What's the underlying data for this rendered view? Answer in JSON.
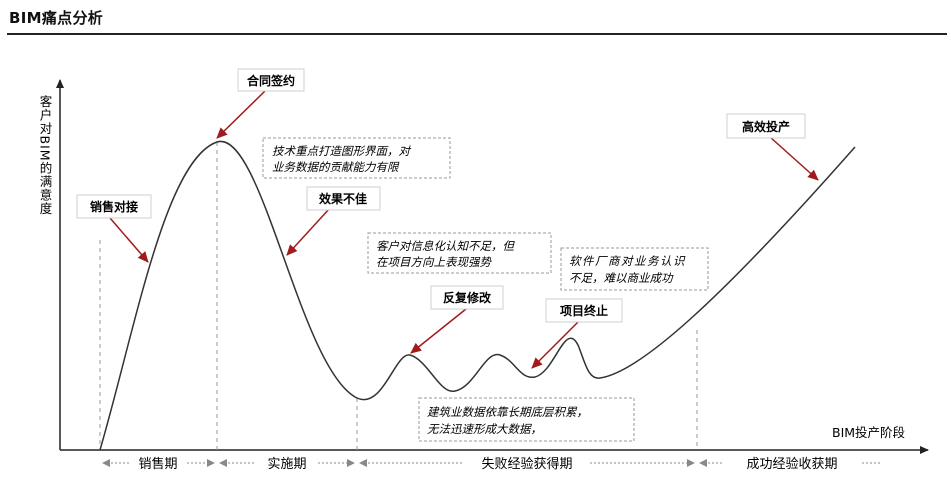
{
  "title": "BIM痛点分析",
  "axes": {
    "y_label": "客户对BIM的满意度",
    "x_label": "BIM投产阶段"
  },
  "callouts": {
    "contract": "合同签约",
    "sales_connect": "销售对接",
    "poor_effect": "效果不佳",
    "revision": "反复修改",
    "termination": "项目终止",
    "high_efficiency": "高效投产"
  },
  "notes": {
    "tech_focus": [
      "技术重点打造图形界面，对",
      "业务数据的贡献能力有限"
    ],
    "client_awareness": [
      "客户对信息化认知不足，但",
      "在项目方向上表现强势"
    ],
    "vendor_awareness": [
      "软件厂商对业务认识",
      "不足，难以商业成功"
    ],
    "construction_data": [
      "建筑业数据依靠长期底层积累，",
      "无法迅速形成大数据，"
    ]
  },
  "phases": {
    "sales": "销售期",
    "implementation": "实施期",
    "failure_experience": "失败经验获得期",
    "success_experience": "成功经验收获期"
  },
  "colors": {
    "arrow": "#a01c1c",
    "curve": "#333333",
    "dashed": "#9a9a9a"
  }
}
